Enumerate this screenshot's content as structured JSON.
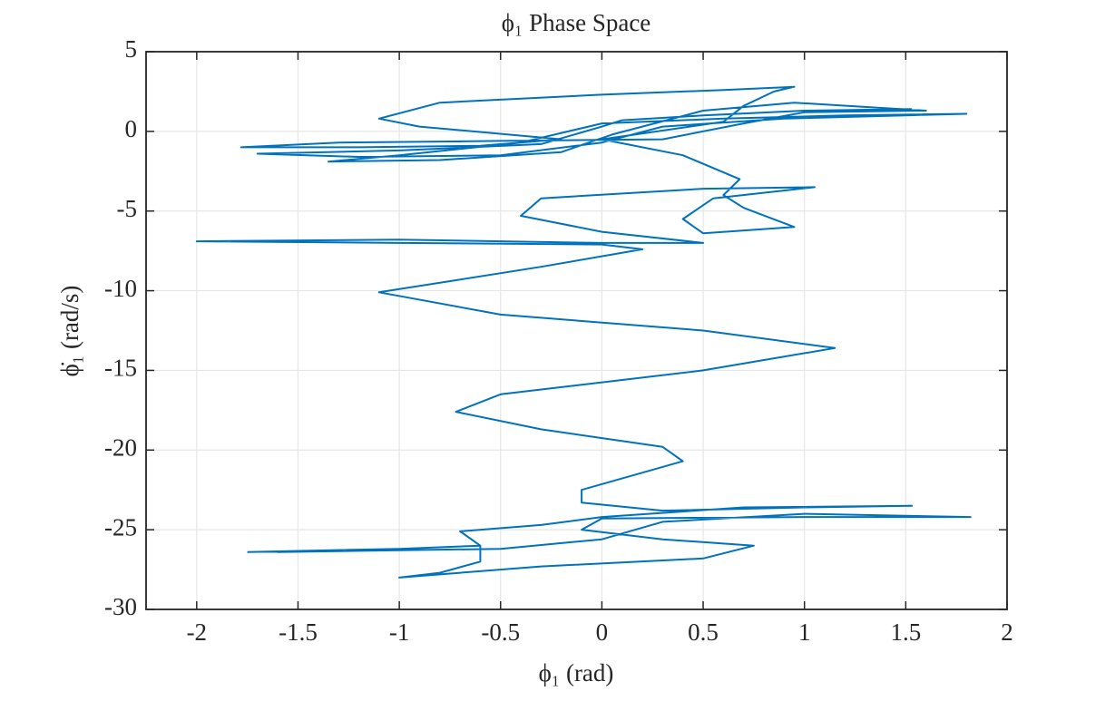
{
  "chart_data": {
    "type": "line",
    "title": "ϕ₁ Phase Space",
    "x_label": "ϕ₁ (rad)",
    "y_label": "ϕ̇₁ (rad/s)",
    "color": "#0072bd",
    "grid": true,
    "xlim": [
      -2.25,
      2
    ],
    "xticks": [
      -2,
      -1.5,
      -1,
      -0.5,
      0,
      0.5,
      1,
      1.5,
      2
    ],
    "ylim": [
      -30,
      5
    ],
    "yticks": [
      -30,
      -25,
      -20,
      -15,
      -10,
      -5,
      0,
      5
    ],
    "x": [
      1.53,
      1.0,
      0.5,
      0.1,
      0.0,
      -0.3,
      -1.0,
      -1.7,
      -1.2,
      -0.5,
      0.0,
      0.3,
      0.9,
      1.8,
      1.2,
      0.6,
      0.0,
      -0.4,
      -1.0,
      -1.35,
      -0.8,
      -0.2,
      0.05,
      0.5,
      0.95,
      1.6,
      1.0,
      0.7,
      0.3,
      -0.5,
      -1.3,
      -1.78,
      -1.2,
      -0.6,
      -0.2,
      -0.9,
      -1.1,
      -0.8,
      0.0,
      0.6,
      0.95,
      0.85,
      0.7,
      0.6,
      0.0,
      0.4,
      0.68,
      0.6,
      0.7,
      0.95,
      0.5,
      0.4,
      0.55,
      1.05,
      0.5,
      -0.3,
      -0.4,
      0.0,
      0.5,
      0.0,
      -1.0,
      -2.0,
      -1.0,
      0.0,
      0.2,
      -0.3,
      -1.1,
      -0.5,
      0.5,
      1.15,
      0.5,
      -0.5,
      -0.72,
      -0.3,
      0.3,
      0.4,
      -0.1,
      -0.1,
      0.3,
      1.0,
      1.53,
      0.7,
      0.0,
      -0.3,
      -0.7,
      -0.6,
      -1.0,
      -1.6,
      -0.5,
      0.0,
      0.3,
      1.0,
      1.82,
      1.0,
      0.0,
      -0.1,
      0.3,
      0.75,
      0.5,
      -0.3,
      -1.0,
      -0.8,
      -0.6,
      -0.6,
      -1.0,
      -1.75
    ],
    "values": [
      1.4,
      1.3,
      1.0,
      0.7,
      0.3,
      -0.8,
      -1.2,
      -1.4,
      -1.6,
      -1.5,
      -0.7,
      0.3,
      0.8,
      1.1,
      1.0,
      0.8,
      0.5,
      -0.7,
      -1.5,
      -1.9,
      -1.8,
      -1.3,
      -0.2,
      1.3,
      1.8,
      1.3,
      1.2,
      0.5,
      -0.5,
      -0.6,
      -0.7,
      -1.0,
      -1.0,
      -0.9,
      -0.5,
      0.3,
      0.8,
      1.8,
      2.3,
      2.6,
      2.8,
      2.5,
      1.6,
      0.6,
      -0.5,
      -1.5,
      -3.0,
      -4.0,
      -4.8,
      -6.0,
      -6.4,
      -5.5,
      -4.2,
      -3.5,
      -3.6,
      -4.2,
      -5.3,
      -6.3,
      -7.0,
      -7.0,
      -6.8,
      -6.9,
      -7.0,
      -7.1,
      -7.4,
      -8.5,
      -10.1,
      -11.5,
      -12.5,
      -13.6,
      -15.0,
      -16.5,
      -17.6,
      -18.7,
      -19.8,
      -20.7,
      -22.5,
      -23.3,
      -23.8,
      -23.6,
      -23.5,
      -23.6,
      -24.2,
      -24.7,
      -25.1,
      -26.0,
      -26.2,
      -26.4,
      -26.2,
      -25.6,
      -24.5,
      -24.0,
      -24.2,
      -24.2,
      -24.3,
      -25.0,
      -25.6,
      -26.0,
      -26.8,
      -27.3,
      -28.0,
      -27.7,
      -27.0,
      -26.0,
      -26.2,
      -26.4
    ]
  }
}
